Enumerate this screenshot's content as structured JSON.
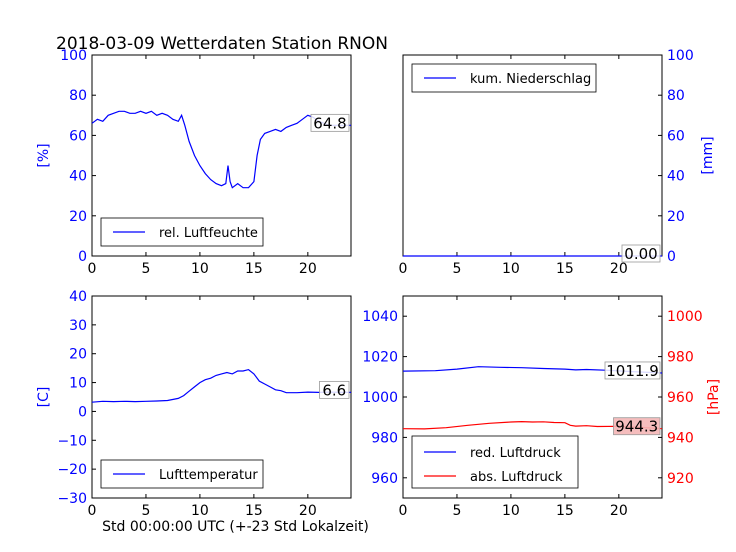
{
  "title": "2018-03-09 Wetterdaten Station RNON",
  "colors": {
    "blue": "#0000ff",
    "red": "#ff0000",
    "value_box_red": "#f4b6b6"
  },
  "chart_data": [
    {
      "id": "humidity",
      "type": "line",
      "xlim": [
        0,
        24
      ],
      "ylim": [
        0,
        100
      ],
      "xticks": [
        "0",
        "5",
        "10",
        "15",
        "20"
      ],
      "yticks": [
        "0",
        "20",
        "40",
        "60",
        "80",
        "100"
      ],
      "ylabel": "[%]",
      "legend_position": "lower-left",
      "grid": false,
      "series": [
        {
          "name": "rel. Luftfeuchte",
          "color": "#0000ff",
          "points": [
            [
              0,
              66
            ],
            [
              0.5,
              68
            ],
            [
              1,
              67
            ],
            [
              1.5,
              70
            ],
            [
              2,
              71
            ],
            [
              2.5,
              72
            ],
            [
              3,
              72
            ],
            [
              3.5,
              71
            ],
            [
              4,
              71
            ],
            [
              4.5,
              72
            ],
            [
              5,
              71
            ],
            [
              5.5,
              72
            ],
            [
              6,
              70
            ],
            [
              6.5,
              71
            ],
            [
              7,
              70
            ],
            [
              7.5,
              68
            ],
            [
              8,
              67
            ],
            [
              8.3,
              70
            ],
            [
              8.6,
              65
            ],
            [
              9,
              57
            ],
            [
              9.5,
              50
            ],
            [
              10,
              45
            ],
            [
              10.5,
              41
            ],
            [
              11,
              38
            ],
            [
              11.5,
              36
            ],
            [
              12,
              35
            ],
            [
              12.4,
              36
            ],
            [
              12.6,
              45
            ],
            [
              12.8,
              37
            ],
            [
              13,
              34
            ],
            [
              13.5,
              36
            ],
            [
              14,
              34
            ],
            [
              14.5,
              34
            ],
            [
              15,
              37
            ],
            [
              15.3,
              50
            ],
            [
              15.6,
              58
            ],
            [
              16,
              61
            ],
            [
              16.5,
              62
            ],
            [
              17,
              63
            ],
            [
              17.5,
              62
            ],
            [
              18,
              64
            ],
            [
              18.5,
              65
            ],
            [
              19,
              66
            ],
            [
              19.5,
              68
            ],
            [
              20,
              70
            ],
            [
              20.5,
              69
            ],
            [
              21,
              67
            ],
            [
              21.5,
              66
            ],
            [
              22,
              65
            ],
            [
              23,
              65
            ],
            [
              24,
              65
            ]
          ],
          "last_value": "64.8"
        }
      ]
    },
    {
      "id": "precipitation",
      "type": "line",
      "xlim": [
        0,
        24
      ],
      "ylim": [
        0,
        100
      ],
      "xticks": [
        "0",
        "5",
        "10",
        "15",
        "20"
      ],
      "yticks": [
        "0",
        "20",
        "40",
        "60",
        "80",
        "100"
      ],
      "ylabel": "[mm]",
      "legend_position": "upper-left",
      "grid": false,
      "series": [
        {
          "name": "kum. Niederschlag",
          "color": "#0000ff",
          "points": [
            [
              0,
              0
            ],
            [
              24,
              0
            ]
          ],
          "last_value": "0.00"
        }
      ]
    },
    {
      "id": "temperature",
      "type": "line",
      "xlim": [
        0,
        24
      ],
      "ylim": [
        -30,
        40
      ],
      "xticks": [
        "0",
        "5",
        "10",
        "15",
        "20"
      ],
      "yticks": [
        "−30",
        "−20",
        "−10",
        "0",
        "10",
        "20",
        "30",
        "40"
      ],
      "ylabel": "[C]",
      "xlabel": "Std 00:00:00 UTC (+-23 Std Lokalzeit)",
      "legend_position": "lower-left",
      "grid": false,
      "series": [
        {
          "name": "Lufttemperatur",
          "color": "#0000ff",
          "points": [
            [
              0,
              3.2
            ],
            [
              1,
              3.5
            ],
            [
              2,
              3.4
            ],
            [
              3,
              3.5
            ],
            [
              4,
              3.4
            ],
            [
              5,
              3.5
            ],
            [
              6,
              3.6
            ],
            [
              7,
              3.8
            ],
            [
              8,
              4.5
            ],
            [
              8.5,
              5.5
            ],
            [
              9,
              7
            ],
            [
              9.5,
              8.5
            ],
            [
              10,
              10
            ],
            [
              10.5,
              11
            ],
            [
              11,
              11.5
            ],
            [
              11.5,
              12.5
            ],
            [
              12,
              13
            ],
            [
              12.5,
              13.5
            ],
            [
              13,
              13
            ],
            [
              13.5,
              14
            ],
            [
              14,
              14
            ],
            [
              14.5,
              14.5
            ],
            [
              15,
              13
            ],
            [
              15.5,
              10.5
            ],
            [
              16,
              9.5
            ],
            [
              16.5,
              8.5
            ],
            [
              17,
              7.5
            ],
            [
              17.5,
              7.2
            ],
            [
              18,
              6.5
            ],
            [
              19,
              6.5
            ],
            [
              20,
              6.7
            ],
            [
              21,
              6.6
            ],
            [
              22,
              6.7
            ],
            [
              23,
              6.6
            ],
            [
              24,
              6.6
            ]
          ],
          "last_value": "6.6"
        }
      ]
    },
    {
      "id": "pressure",
      "type": "line",
      "xlim": [
        0,
        24
      ],
      "ylim_left": [
        950,
        1050
      ],
      "ylim_right": [
        910,
        1010
      ],
      "xticks": [
        "0",
        "5",
        "10",
        "15",
        "20"
      ],
      "yticks_left": [
        "960",
        "980",
        "1000",
        "1020",
        "1040"
      ],
      "yticks_right": [
        "920",
        "940",
        "960",
        "980",
        "1000"
      ],
      "ylabel_right": "[hPa]",
      "legend_position": "lower-left",
      "grid": false,
      "series": [
        {
          "name": "red. Luftdruck",
          "color": "#0000ff",
          "axis": "left",
          "points": [
            [
              0,
              1012.8
            ],
            [
              3,
              1013.0
            ],
            [
              5,
              1013.8
            ],
            [
              7,
              1015.0
            ],
            [
              9,
              1014.7
            ],
            [
              11,
              1014.5
            ],
            [
              13,
              1014.1
            ],
            [
              15,
              1013.8
            ],
            [
              16,
              1013.4
            ],
            [
              17,
              1013.6
            ],
            [
              19,
              1013.2
            ],
            [
              21,
              1012.6
            ],
            [
              24,
              1011.9
            ]
          ],
          "last_value": "1011.9"
        },
        {
          "name": "abs. Luftdruck",
          "color": "#ff0000",
          "axis": "right",
          "points": [
            [
              0,
              944.3
            ],
            [
              2,
              944.2
            ],
            [
              4,
              944.8
            ],
            [
              6,
              946.0
            ],
            [
              8,
              947.0
            ],
            [
              10,
              947.6
            ],
            [
              11,
              947.8
            ],
            [
              12,
              947.6
            ],
            [
              13,
              947.7
            ],
            [
              14,
              947.4
            ],
            [
              15,
              947.3
            ],
            [
              15.5,
              946.0
            ],
            [
              16,
              945.6
            ],
            [
              17,
              945.8
            ],
            [
              18,
              945.4
            ],
            [
              20,
              945.5
            ],
            [
              22,
              945.0
            ],
            [
              24,
              944.3
            ]
          ],
          "last_value": "944.3"
        }
      ]
    }
  ]
}
